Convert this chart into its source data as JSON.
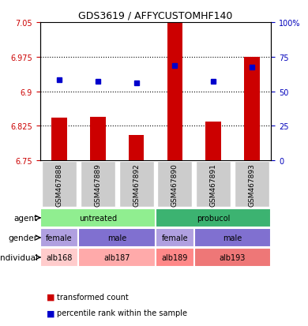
{
  "title": "GDS3619 / AFFYCUSTOMHF140",
  "samples": [
    "GSM467888",
    "GSM467889",
    "GSM467892",
    "GSM467890",
    "GSM467891",
    "GSM467893"
  ],
  "bar_values": [
    6.843,
    6.845,
    6.805,
    7.05,
    6.835,
    6.975
  ],
  "bar_bottom": 6.75,
  "blue_dots": [
    6.925,
    6.922,
    6.918,
    6.955,
    6.922,
    6.952
  ],
  "ylim": [
    6.75,
    7.05
  ],
  "yticks_left": [
    6.75,
    6.825,
    6.9,
    6.975,
    7.05
  ],
  "yticks_right": [
    0,
    25,
    50,
    75,
    100
  ],
  "ytick_labels_left": [
    "6.75",
    "6.825",
    "6.9",
    "6.975",
    "7.05"
  ],
  "ytick_labels_right": [
    "0",
    "25",
    "50",
    "75",
    "100%"
  ],
  "bar_color": "#cc0000",
  "dot_color": "#0000cc",
  "grid_color": "#000000",
  "agent_labels": [
    {
      "text": "untreated",
      "start": 0,
      "end": 3,
      "color": "#90ee90"
    },
    {
      "text": "probucol",
      "start": 3,
      "end": 6,
      "color": "#3cb371"
    }
  ],
  "gender_labels": [
    {
      "text": "female",
      "start": 0,
      "end": 1,
      "color": "#b0a0e0"
    },
    {
      "text": "male",
      "start": 1,
      "end": 3,
      "color": "#8070d0"
    },
    {
      "text": "female",
      "start": 3,
      "end": 4,
      "color": "#b0a0e0"
    },
    {
      "text": "male",
      "start": 4,
      "end": 6,
      "color": "#8070d0"
    }
  ],
  "individual_labels": [
    {
      "text": "alb168",
      "start": 0,
      "end": 1,
      "color": "#ffcccc"
    },
    {
      "text": "alb187",
      "start": 1,
      "end": 3,
      "color": "#ffaaaa"
    },
    {
      "text": "alb189",
      "start": 3,
      "end": 4,
      "color": "#ff8888"
    },
    {
      "text": "alb193",
      "start": 4,
      "end": 6,
      "color": "#ee7777"
    }
  ],
  "row_labels": [
    "agent",
    "gender",
    "individual"
  ],
  "legend_items": [
    {
      "color": "#cc0000",
      "label": "transformed count"
    },
    {
      "color": "#0000cc",
      "label": "percentile rank within the sample"
    }
  ],
  "sample_bg_color": "#cccccc",
  "left_label_color": "#cc0000",
  "right_label_color": "#0000bb"
}
